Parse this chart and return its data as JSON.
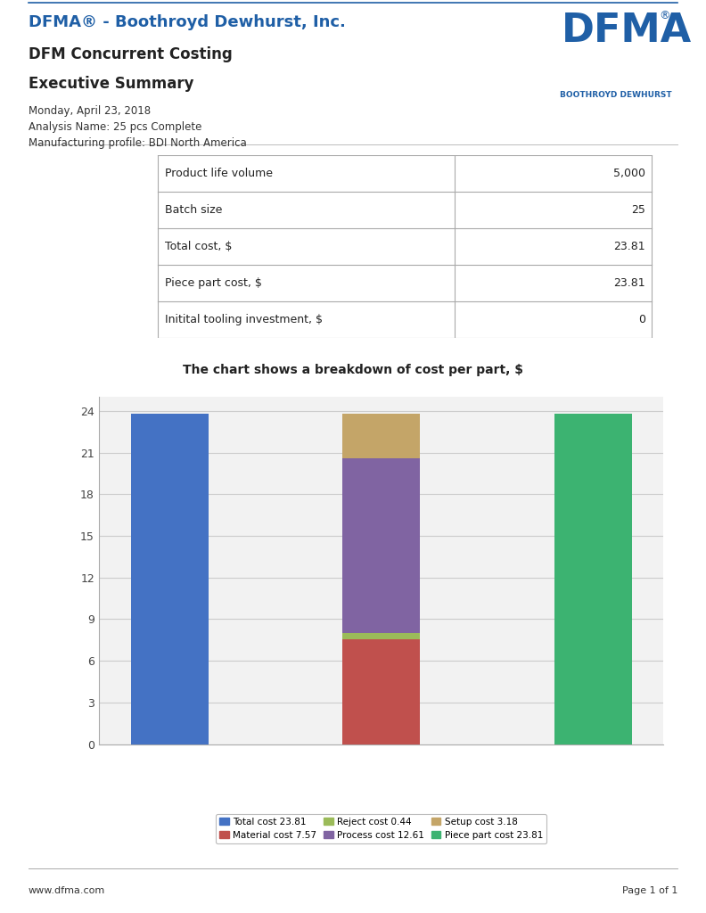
{
  "page_bg": "#ffffff",
  "header_title_color": "#1f5fa6",
  "header_title": "DFMA® - Boothroyd Dewhurst, Inc.",
  "header_subtitle1": "DFM Concurrent Costing",
  "header_subtitle2": "Executive Summary",
  "date_line": "Monday, April 23, 2018",
  "analysis_line": "Analysis Name: 25 pcs Complete",
  "mfg_line": "Manufacturing profile: BDI North America",
  "table_rows": [
    [
      "Product life volume",
      "5,000"
    ],
    [
      "Batch size",
      "25"
    ],
    [
      "Total cost, $",
      "23.81"
    ],
    [
      "Piece part cost, $",
      "23.81"
    ],
    [
      "Initital tooling investment, $",
      "0"
    ]
  ],
  "chart_title": "The chart shows a breakdown of cost per part, $",
  "bar1_label": "Total cost 23.81",
  "bar1_color": "#4472c4",
  "bar1_value": 23.81,
  "bar2_segments": [
    {
      "label": "Material cost 7.57",
      "color": "#c0504d",
      "value": 7.57
    },
    {
      "label": "Reject cost 0.44",
      "color": "#9bbb59",
      "value": 0.44
    },
    {
      "label": "Process cost 12.61",
      "color": "#8064a2",
      "value": 12.61
    },
    {
      "label": "Setup cost 3.18",
      "color": "#c4a568",
      "value": 3.18
    }
  ],
  "bar3_label": "Piece part cost 23.81",
  "bar3_color": "#3cb371",
  "bar3_value": 23.81,
  "yticks": [
    0,
    3,
    6,
    9,
    12,
    15,
    18,
    21,
    24
  ],
  "ymax": 25,
  "footer_left": "www.dfma.com",
  "footer_right": "Page 1 of 1",
  "dfma_logo_text": "DFMA",
  "dfma_logo_sub": "BOOTHROYD DEWHURST"
}
